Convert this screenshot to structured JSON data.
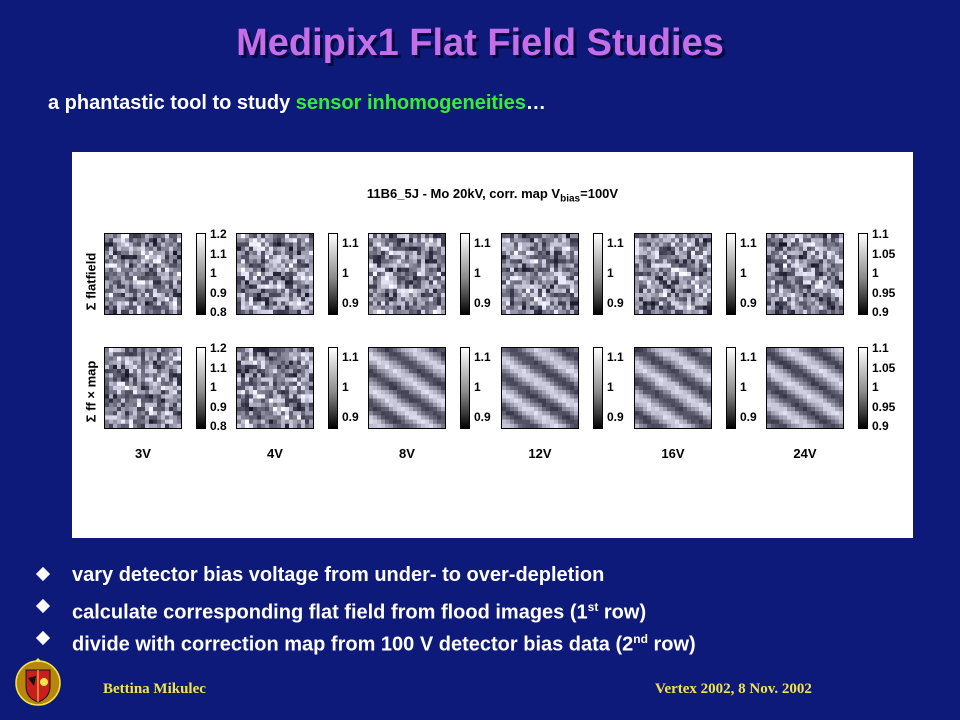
{
  "slide": {
    "title": "Medipix1 Flat Field Studies",
    "subtitle_prefix": "a phantastic tool to study ",
    "subtitle_highlight": "sensor inhomogeneities",
    "subtitle_suffix": "…",
    "highlight_color": "#33ee33",
    "title_color": "#c46ee8",
    "background_color": "#0d1a7a"
  },
  "figure": {
    "title_main": "11B6_5J - Mo 20kV, corr. map V",
    "title_sub": "bias",
    "title_end": "=100V",
    "row_labels": [
      "Σ flatfield",
      "Σ ff × map"
    ],
    "columns": [
      {
        "voltage": "3V",
        "ticks_row1": [
          "1.2",
          "1.1",
          "1",
          "0.9",
          "0.8"
        ],
        "ticks_row2": [
          "1.2",
          "1.1",
          "1",
          "0.9",
          "0.8"
        ],
        "style_row2": "noise"
      },
      {
        "voltage": "4V",
        "ticks_row1": [
          "1.1",
          "1",
          "0.9"
        ],
        "ticks_row2": [
          "1.1",
          "1",
          "0.9"
        ],
        "style_row2": "noise"
      },
      {
        "voltage": "8V",
        "ticks_row1": [
          "1.1",
          "1",
          "0.9"
        ],
        "ticks_row2": [
          "1.1",
          "1",
          "0.9"
        ],
        "style_row2": "bands"
      },
      {
        "voltage": "12V",
        "ticks_row1": [
          "1.1",
          "1",
          "0.9"
        ],
        "ticks_row2": [
          "1.1",
          "1",
          "0.9"
        ],
        "style_row2": "bands"
      },
      {
        "voltage": "16V",
        "ticks_row1": [
          "1.1",
          "1",
          "0.9"
        ],
        "ticks_row2": [
          "1.1",
          "1",
          "0.9"
        ],
        "style_row2": "bands"
      },
      {
        "voltage": "24V",
        "ticks_row1": [
          "1.1",
          "1.05",
          "1",
          "0.95",
          "0.9"
        ],
        "ticks_row2": [
          "1.1",
          "1.05",
          "1",
          "0.95",
          "0.9"
        ],
        "style_row2": "bands"
      }
    ]
  },
  "bullets": [
    {
      "text": "vary detector bias voltage from under- to over-depletion",
      "sup": "",
      "tail": ""
    },
    {
      "text": "calculate corresponding flat field from flood images (1",
      "sup": "st",
      "tail": " row)"
    },
    {
      "text": "divide with correction map from 100 V detector bias data (2",
      "sup": "nd",
      "tail": " row)"
    }
  ],
  "footer": {
    "author": "Bettina Mikulec",
    "event": "Vertex 2002, 8 Nov. 2002",
    "color": "#f2e44a"
  },
  "logo": {
    "icon": "university-crest-icon"
  }
}
